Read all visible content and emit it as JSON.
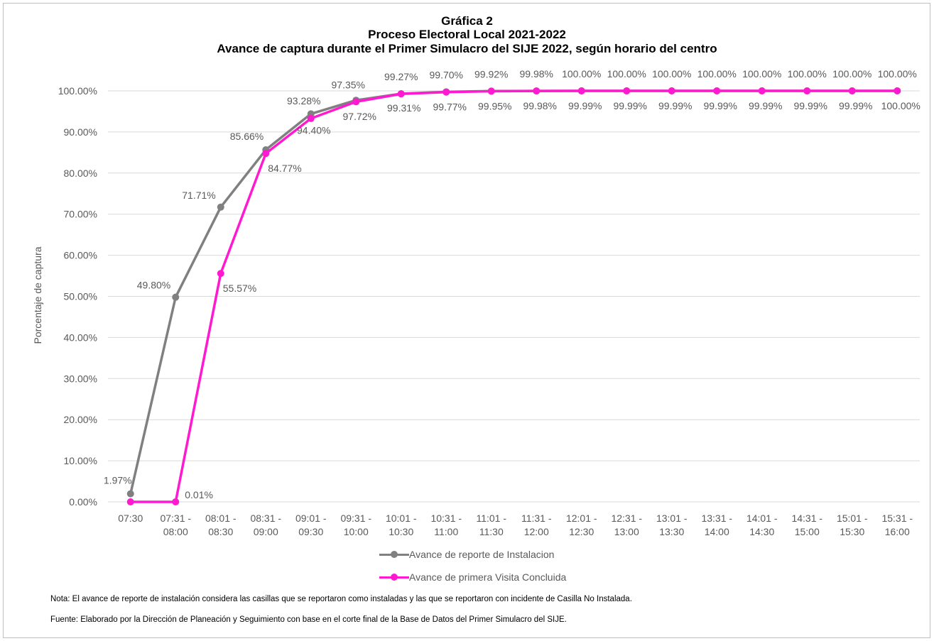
{
  "title_lines": [
    "Gráfica 2",
    "Proceso Electoral Local 2021-2022",
    "Avance de captura durante el Primer Simulacro del SIJE 2022, según horario del centro"
  ],
  "notes": [
    "Nota: El avance de reporte de instalación considera las casillas que se reportaron como instaladas y las que se reportaron con incidente de Casilla No Instalada.",
    "Fuente: Elaborado por la Dirección de Planeación y Seguimiento con base en el corte final de la Base de Datos del Primer Simulacro del SIJE."
  ],
  "colors": {
    "series_1": "#808080",
    "series_2": "#ff1ad1",
    "grid": "#d9d9d9",
    "text": "#595959"
  },
  "chart_data": {
    "type": "line",
    "title": "Gráfica 2 — Proceso Electoral Local 2021-2022 — Avance de captura durante el Primer Simulacro del SIJE 2022, según horario del centro",
    "xlabel": "",
    "ylabel": "Porcentaje de captura",
    "ylim": [
      0,
      100
    ],
    "yticks": [
      "0.00%",
      "10.00%",
      "20.00%",
      "30.00%",
      "40.00%",
      "50.00%",
      "60.00%",
      "70.00%",
      "80.00%",
      "90.00%",
      "100.00%"
    ],
    "grid": true,
    "legend_position": "bottom",
    "categories": [
      [
        "07:30"
      ],
      [
        "07:31 -",
        "08:00"
      ],
      [
        "08:01 -",
        "08:30"
      ],
      [
        "08:31 -",
        "09:00"
      ],
      [
        "09:01 -",
        "09:30"
      ],
      [
        "09:31 -",
        "10:00"
      ],
      [
        "10:01 -",
        "10:30"
      ],
      [
        "10:31 -",
        "11:00"
      ],
      [
        "11:01 -",
        "11:30"
      ],
      [
        "11:31 -",
        "12:00"
      ],
      [
        "12:01 -",
        "12:30"
      ],
      [
        "12:31 -",
        "13:00"
      ],
      [
        "13:01 -",
        "13:30"
      ],
      [
        "13:31 -",
        "14:00"
      ],
      [
        "14:01 -",
        "14:30"
      ],
      [
        "14:31 -",
        "15:00"
      ],
      [
        "15:01 -",
        "15:30"
      ],
      [
        "15:31 -",
        "16:00"
      ]
    ],
    "series": [
      {
        "name": "Avance de reporte de Instalacion",
        "values": [
          1.97,
          49.8,
          71.71,
          85.66,
          94.4,
          97.72,
          99.31,
          99.77,
          99.95,
          99.98,
          99.99,
          99.99,
          99.99,
          99.99,
          99.99,
          99.99,
          99.99,
          100.0
        ],
        "labels": [
          "1.97%",
          "49.80%",
          "71.71%",
          "85.66%",
          "94.40%",
          "97.72%",
          "99.31%",
          "99.77%",
          "99.95%",
          "99.98%",
          "99.99%",
          "99.99%",
          "99.99%",
          "99.99%",
          "99.99%",
          "99.99%",
          "99.99%",
          "100.00%"
        ]
      },
      {
        "name": "Avance de primera Visita Concluida",
        "values": [
          0.0,
          0.01,
          55.57,
          84.77,
          93.28,
          97.35,
          99.27,
          99.7,
          99.92,
          99.98,
          100.0,
          100.0,
          100.0,
          100.0,
          100.0,
          100.0,
          100.0,
          100.0
        ],
        "labels": [
          "",
          "0.01%",
          "55.57%",
          "84.77%",
          "93.28%",
          "97.35%",
          "99.27%",
          "99.70%",
          "99.92%",
          "99.98%",
          "100.00%",
          "100.00%",
          "100.00%",
          "100.00%",
          "100.00%",
          "100.00%",
          "100.00%",
          "100.00%"
        ]
      }
    ]
  }
}
